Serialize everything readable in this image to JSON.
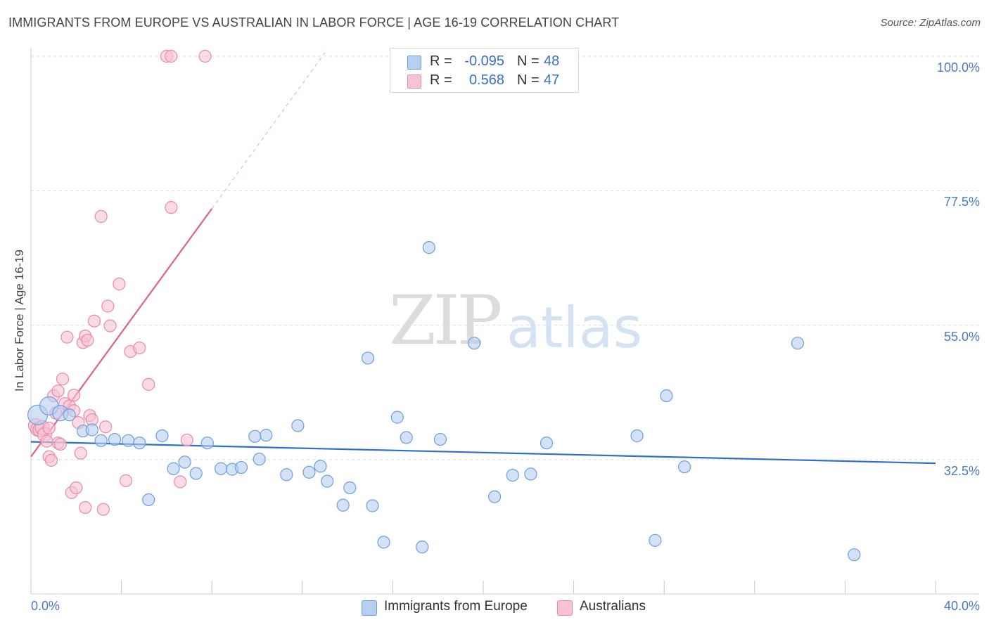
{
  "title": "IMMIGRANTS FROM EUROPE VS AUSTRALIAN IN LABOR FORCE | AGE 16-19 CORRELATION CHART",
  "source": "Source: ZipAtlas.com",
  "watermark": {
    "zip": "ZIP",
    "atlas": "atlas"
  },
  "legend": {
    "r_label": "R =",
    "n_label": "N =",
    "series": [
      {
        "r": "-0.095",
        "n": "48",
        "name": "Immigrants from Europe"
      },
      {
        "r": "0.568",
        "n": "47",
        "name": "Australians"
      }
    ]
  },
  "colors": {
    "blue_fill": "#b7cff0",
    "blue_stroke": "#6d9de0",
    "blue_line": "#2f6fcc",
    "pink_fill": "#f7c3d3",
    "pink_stroke": "#e88aa8",
    "pink_line": "#e0608e",
    "tick_text": "#4a78c4"
  },
  "chart_data": {
    "type": "scatter",
    "title": "IMMIGRANTS FROM EUROPE VS AUSTRALIAN IN LABOR FORCE | AGE 16-19 CORRELATION CHART",
    "xlabel": "",
    "ylabel": "In Labor Force | Age 16-19",
    "xlim": [
      0,
      40
    ],
    "ylim": [
      10,
      102
    ],
    "x_tick_labels": [
      "0.0%",
      "40.0%"
    ],
    "y_tick_labels": [
      "100.0%",
      "77.5%",
      "55.0%",
      "32.5%"
    ],
    "y_ticks": [
      100,
      77.5,
      55,
      32.5
    ],
    "grid": true,
    "legend_position": "bottom",
    "series": [
      {
        "name": "Immigrants from Europe",
        "color": "#6d9de0",
        "trend": {
          "x": [
            0,
            40
          ],
          "y": [
            35.5,
            31.9
          ]
        },
        "points": [
          [
            0.3,
            40.0
          ],
          [
            0.8,
            41.5
          ],
          [
            1.3,
            40.3
          ],
          [
            1.7,
            40.0
          ],
          [
            2.3,
            37.3
          ],
          [
            2.7,
            37.5
          ],
          [
            3.1,
            35.7
          ],
          [
            3.7,
            35.9
          ],
          [
            4.3,
            35.7
          ],
          [
            4.8,
            35.3
          ],
          [
            5.2,
            25.8
          ],
          [
            5.8,
            36.5
          ],
          [
            6.3,
            31.0
          ],
          [
            6.8,
            32.1
          ],
          [
            7.3,
            30.2
          ],
          [
            7.8,
            35.3
          ],
          [
            8.4,
            31.0
          ],
          [
            8.9,
            30.9
          ],
          [
            9.3,
            31.2
          ],
          [
            9.9,
            36.4
          ],
          [
            10.1,
            32.6
          ],
          [
            10.4,
            36.6
          ],
          [
            11.3,
            30.0
          ],
          [
            11.8,
            38.2
          ],
          [
            12.3,
            30.4
          ],
          [
            12.8,
            31.4
          ],
          [
            13.1,
            28.9
          ],
          [
            13.8,
            24.9
          ],
          [
            14.1,
            27.8
          ],
          [
            14.9,
            49.5
          ],
          [
            15.1,
            24.8
          ],
          [
            15.6,
            18.7
          ],
          [
            16.2,
            39.6
          ],
          [
            16.6,
            36.2
          ],
          [
            17.3,
            17.9
          ],
          [
            17.6,
            68.0
          ],
          [
            18.1,
            35.9
          ],
          [
            19.6,
            52.0
          ],
          [
            20.5,
            26.3
          ],
          [
            21.3,
            29.9
          ],
          [
            22.1,
            30.1
          ],
          [
            22.8,
            35.3
          ],
          [
            26.8,
            36.5
          ],
          [
            27.6,
            19.0
          ],
          [
            28.1,
            43.2
          ],
          [
            28.9,
            31.3
          ],
          [
            33.9,
            52.0
          ],
          [
            36.4,
            16.6
          ]
        ]
      },
      {
        "name": "Australians",
        "color": "#e88aa8",
        "trend": {
          "x": [
            0,
            8.0
          ],
          "y": [
            33.0,
            74.5
          ]
        },
        "trend_dashed": {
          "x": [
            8.0,
            13.0
          ],
          "y": [
            74.5,
            100.6
          ]
        },
        "points": [
          [
            0.2,
            38.2
          ],
          [
            0.3,
            37.6
          ],
          [
            0.4,
            37.5
          ],
          [
            0.5,
            37.9
          ],
          [
            0.6,
            36.7
          ],
          [
            0.7,
            35.6
          ],
          [
            0.8,
            33.0
          ],
          [
            0.8,
            37.8
          ],
          [
            0.9,
            32.4
          ],
          [
            1.0,
            43.2
          ],
          [
            1.1,
            40.3
          ],
          [
            1.2,
            44.0
          ],
          [
            1.2,
            35.3
          ],
          [
            1.3,
            35.1
          ],
          [
            1.4,
            46.0
          ],
          [
            1.5,
            41.9
          ],
          [
            1.6,
            53.0
          ],
          [
            1.7,
            41.5
          ],
          [
            1.8,
            27.0
          ],
          [
            1.9,
            43.3
          ],
          [
            1.9,
            40.7
          ],
          [
            2.0,
            27.8
          ],
          [
            2.1,
            38.7
          ],
          [
            2.2,
            33.6
          ],
          [
            2.3,
            52.1
          ],
          [
            2.4,
            24.5
          ],
          [
            2.4,
            53.2
          ],
          [
            2.5,
            52.5
          ],
          [
            2.6,
            39.9
          ],
          [
            2.7,
            39.2
          ],
          [
            2.8,
            55.7
          ],
          [
            3.1,
            73.2
          ],
          [
            3.2,
            24.2
          ],
          [
            3.3,
            38.0
          ],
          [
            3.4,
            58.2
          ],
          [
            3.5,
            54.9
          ],
          [
            3.9,
            61.9
          ],
          [
            4.2,
            29.0
          ],
          [
            4.4,
            50.6
          ],
          [
            4.8,
            51.2
          ],
          [
            5.2,
            45.1
          ],
          [
            6.0,
            100.0
          ],
          [
            6.2,
            100.0
          ],
          [
            6.2,
            74.7
          ],
          [
            6.6,
            28.8
          ],
          [
            6.9,
            35.8
          ],
          [
            7.7,
            100.0
          ]
        ]
      }
    ]
  }
}
